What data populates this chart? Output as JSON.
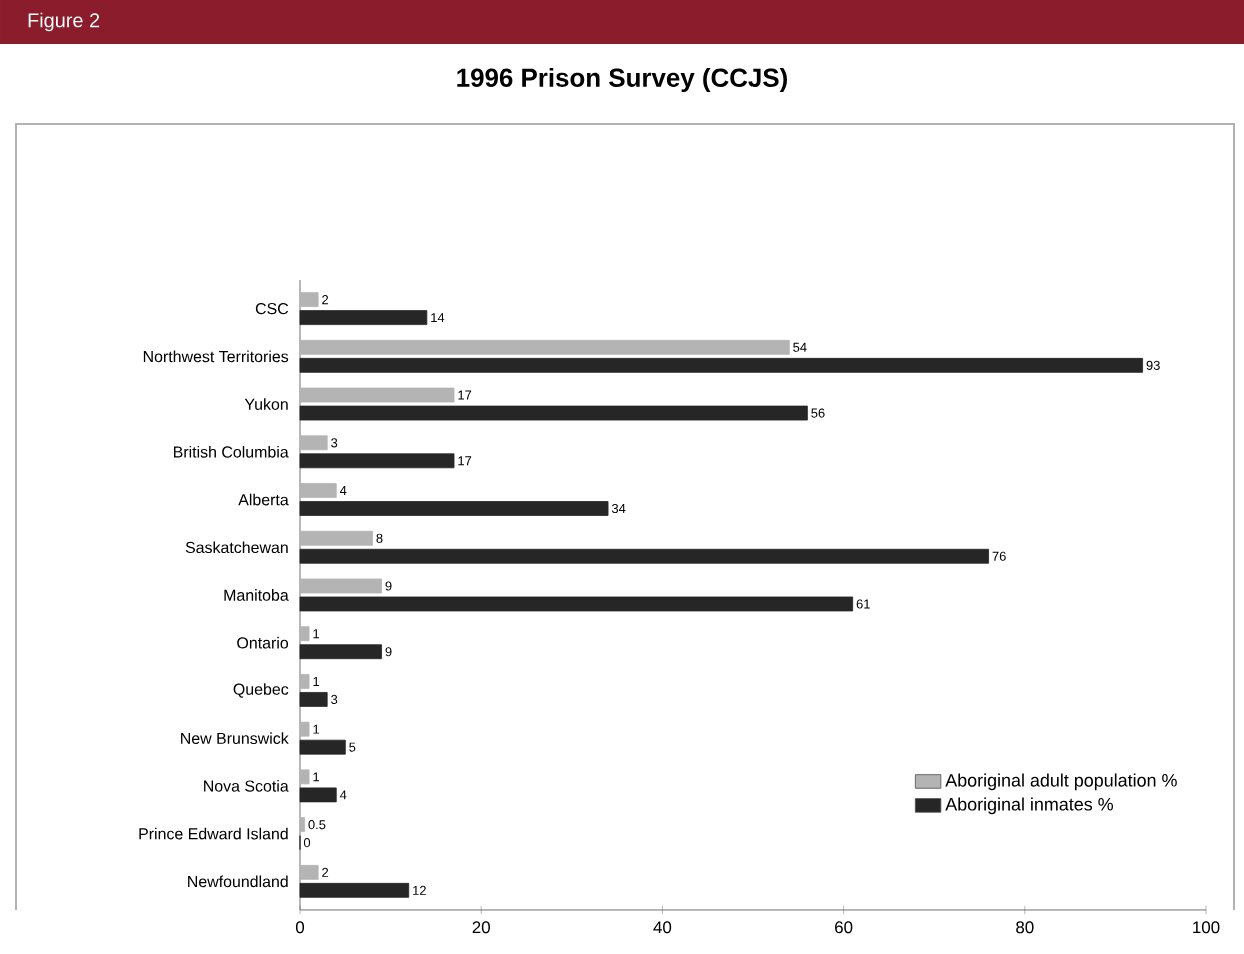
{
  "chart_data": {
    "type": "bar",
    "orientation": "horizontal",
    "title": "1996 Prison Survey (CCJS)",
    "annotations": [
      "Figure 2"
    ],
    "categories": [
      "CSC",
      "Northwest Territories",
      "Yukon",
      "British Columbia",
      "Alberta",
      "Saskatchewan",
      "Manitoba",
      "Ontario",
      "Quebec",
      "New Brunswick",
      "Nova Scotia",
      "Prince Edward Island",
      "Newfoundland"
    ],
    "series": [
      {
        "name": "Aboriginal adult population %",
        "color": "#b4b4b4",
        "values": [
          2,
          54,
          17,
          3,
          4,
          8,
          9,
          1,
          1,
          1,
          1,
          0.5,
          2
        ]
      },
      {
        "name": "Aboriginal inmates %",
        "color": "#262626",
        "values": [
          14,
          93,
          56,
          17,
          34,
          76,
          61,
          9,
          3,
          5,
          4,
          0,
          12
        ]
      }
    ],
    "xlim": [
      0,
      100
    ],
    "xticks": [
      0,
      20,
      40,
      60,
      80,
      100
    ],
    "data_labels": true,
    "legend": "bottom right",
    "grid": false
  }
}
